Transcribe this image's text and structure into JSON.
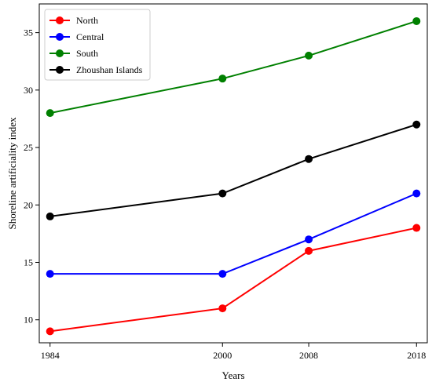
{
  "chart_data": {
    "type": "line",
    "xlabel": "Years",
    "ylabel": "Shoreline artificiality index",
    "x": [
      1984,
      2000,
      2008,
      2018
    ],
    "xlim": [
      1983,
      2019
    ],
    "ylim": [
      8.0,
      37.5
    ],
    "x_ticks": [
      1984,
      2000,
      2008,
      2018
    ],
    "y_ticks": [
      10,
      15,
      20,
      25,
      30,
      35
    ],
    "grid": false,
    "legend_position": "top-left",
    "series": [
      {
        "name": "North",
        "color": "#ff0000",
        "values": [
          9,
          11,
          16,
          18
        ]
      },
      {
        "name": "Central",
        "color": "#0000ff",
        "values": [
          14,
          14,
          17,
          21
        ]
      },
      {
        "name": "South",
        "color": "#008000",
        "values": [
          28,
          31,
          33,
          36
        ]
      },
      {
        "name": "Zhoushan Islands",
        "color": "#000000",
        "values": [
          19,
          21,
          24,
          27
        ]
      }
    ]
  }
}
